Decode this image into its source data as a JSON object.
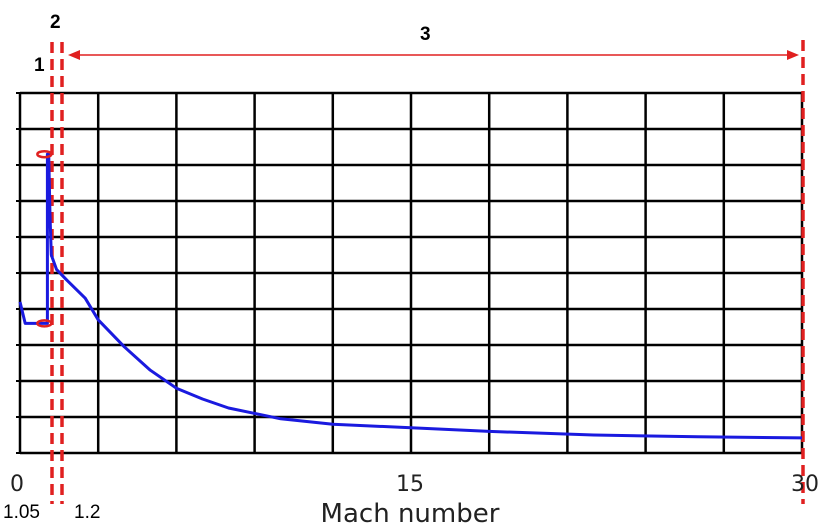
{
  "chart_data": {
    "type": "line",
    "title": "",
    "xlabel": "Mach number",
    "ylabel": "",
    "xlim": [
      0,
      30
    ],
    "ylim": [
      0,
      10
    ],
    "grid": true,
    "x_ticks": [
      "0",
      "15",
      "30"
    ],
    "series": [
      {
        "color": "#1a1adf",
        "x": [
          0.0,
          0.2,
          0.4,
          0.6,
          0.8,
          1.0,
          1.05,
          1.05,
          1.1,
          1.15,
          1.2,
          1.4,
          1.8,
          2.5,
          3.0,
          4.0,
          5.0,
          6.0,
          7.0,
          8.0,
          10.0,
          12.0,
          15.0,
          18.0,
          22.0,
          26.0,
          30.0
        ],
        "y": [
          4.2,
          3.6,
          3.6,
          3.6,
          3.6,
          3.6,
          3.6,
          8.3,
          8.3,
          6.6,
          5.5,
          5.1,
          4.8,
          4.3,
          3.7,
          2.95,
          2.3,
          1.8,
          1.5,
          1.25,
          0.95,
          0.8,
          0.7,
          0.6,
          0.5,
          0.45,
          0.42
        ]
      }
    ],
    "regions": [
      {
        "label": "1",
        "boundary_label": "1.05",
        "x": 1.05
      },
      {
        "label": "2",
        "boundary_label": "1.2",
        "x": 1.2
      },
      {
        "label": "3",
        "end_x": 30
      }
    ],
    "colors": {
      "curve": "#1a1adf",
      "markers": "#e02020",
      "grid": "#000000"
    }
  }
}
